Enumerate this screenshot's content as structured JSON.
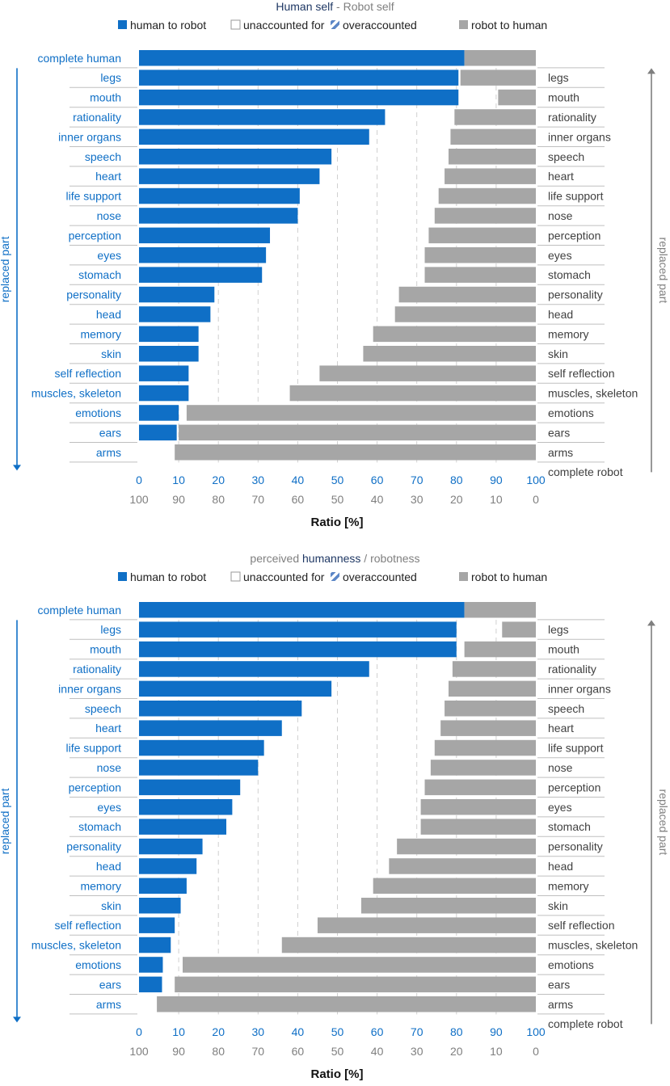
{
  "colors": {
    "human": "#0F6FC6",
    "robot": "#A6A6A6",
    "hatch_stripe": "#5B86C6",
    "left_label": "#0F6FC6",
    "right_label": "#404040",
    "robot_axis": "#7F7F7F",
    "arrow_left": "#0F6FC6",
    "arrow_right": "#7F7F7F",
    "title_dark": "#1F3864",
    "title_gray": "#7F7F7F"
  },
  "legend": {
    "human": "human to robot",
    "unaccounted": "unaccounted for",
    "over": "overaccounted",
    "robot": "robot to human"
  },
  "axis_labels": {
    "left": "replaced part",
    "right": "replaced part",
    "x": "Ratio [%]"
  },
  "chart_data": [
    {
      "type": "bar",
      "orientation": "horizontal",
      "title_parts": [
        {
          "text": "Human self",
          "style": "dark"
        },
        {
          "text": " - ",
          "style": "gray"
        },
        {
          "text": "Robot self",
          "style": "gray"
        }
      ],
      "xlabel": "Ratio [%]",
      "xlim": [
        0,
        100
      ],
      "xticks_human": [
        "0",
        "10",
        "20",
        "30",
        "40",
        "50",
        "60",
        "70",
        "80",
        "90",
        "100"
      ],
      "xticks_robot": [
        "100",
        "90",
        "80",
        "70",
        "60",
        "50",
        "40",
        "30",
        "20",
        "10",
        "0"
      ],
      "left_labels": [
        "complete human",
        "legs",
        "mouth",
        "rationality",
        "inner organs",
        "speech",
        "heart",
        "life support",
        "nose",
        "perception",
        "eyes",
        "stomach",
        "personality",
        "head",
        "memory",
        "skin",
        "self reflection",
        "muscles, skeleton",
        "emotions",
        "ears",
        "arms"
      ],
      "right_labels": [
        "legs",
        "mouth",
        "rationality",
        "inner organs",
        "speech",
        "heart",
        "life support",
        "nose",
        "perception",
        "eyes",
        "stomach",
        "personality",
        "head",
        "memory",
        "skin",
        "self reflection",
        "muscles, skeleton",
        "emotions",
        "ears",
        "arms",
        "complete robot"
      ],
      "bars": [
        {
          "human": 82,
          "robot": 18
        },
        {
          "human": 80.5,
          "robot": 19
        },
        {
          "human": 80.5,
          "robot": 9.5
        },
        {
          "human": 62,
          "robot": 20.5
        },
        {
          "human": 58,
          "robot": 21.5
        },
        {
          "human": 48.5,
          "robot": 22
        },
        {
          "human": 45.5,
          "robot": 23
        },
        {
          "human": 40.5,
          "robot": 24.5
        },
        {
          "human": 40,
          "robot": 25.5
        },
        {
          "human": 33,
          "robot": 27
        },
        {
          "human": 32,
          "robot": 28
        },
        {
          "human": 31,
          "robot": 28
        },
        {
          "human": 19,
          "robot": 34.5
        },
        {
          "human": 18,
          "robot": 35.5
        },
        {
          "human": 15,
          "robot": 41
        },
        {
          "human": 15,
          "robot": 43.5
        },
        {
          "human": 12.5,
          "robot": 54.5
        },
        {
          "human": 12.5,
          "robot": 62
        },
        {
          "human": 10,
          "robot": 88
        },
        {
          "human": 9.5,
          "robot": 90
        },
        {
          "human": 0,
          "robot": 91
        }
      ]
    },
    {
      "type": "bar",
      "orientation": "horizontal",
      "title_parts": [
        {
          "text": "perceived ",
          "style": "gray"
        },
        {
          "text": "humanness",
          "style": "dark"
        },
        {
          "text": " / ",
          "style": "gray"
        },
        {
          "text": "robotness",
          "style": "gray"
        }
      ],
      "xlabel": "Ratio [%]",
      "xlim": [
        0,
        100
      ],
      "xticks_human": [
        "0",
        "10",
        "20",
        "30",
        "40",
        "50",
        "60",
        "70",
        "80",
        "90",
        "100"
      ],
      "xticks_robot": [
        "100",
        "90",
        "80",
        "70",
        "60",
        "50",
        "40",
        "30",
        "20",
        "10",
        "0"
      ],
      "left_labels": [
        "complete human",
        "legs",
        "mouth",
        "rationality",
        "inner organs",
        "speech",
        "heart",
        "life support",
        "nose",
        "perception",
        "eyes",
        "stomach",
        "personality",
        "head",
        "memory",
        "skin",
        "self reflection",
        "muscles, skeleton",
        "emotions",
        "ears",
        "arms"
      ],
      "right_labels": [
        "legs",
        "mouth",
        "rationality",
        "inner organs",
        "speech",
        "heart",
        "life support",
        "nose",
        "perception",
        "eyes",
        "stomach",
        "personality",
        "head",
        "memory",
        "skin",
        "self reflection",
        "muscles, skeleton",
        "emotions",
        "ears",
        "arms",
        "complete robot"
      ],
      "bars": [
        {
          "human": 82,
          "robot": 18
        },
        {
          "human": 80,
          "robot": 8.5
        },
        {
          "human": 80,
          "robot": 18
        },
        {
          "human": 58,
          "robot": 21
        },
        {
          "human": 48.5,
          "robot": 22
        },
        {
          "human": 41,
          "robot": 23
        },
        {
          "human": 36,
          "robot": 24
        },
        {
          "human": 31.5,
          "robot": 25.5
        },
        {
          "human": 30,
          "robot": 26.5
        },
        {
          "human": 25.5,
          "robot": 28
        },
        {
          "human": 23.5,
          "robot": 29
        },
        {
          "human": 22,
          "robot": 29
        },
        {
          "human": 16,
          "robot": 35
        },
        {
          "human": 14.5,
          "robot": 37
        },
        {
          "human": 12,
          "robot": 41
        },
        {
          "human": 10.5,
          "robot": 44
        },
        {
          "human": 9,
          "robot": 55
        },
        {
          "human": 8,
          "robot": 64
        },
        {
          "human": 6,
          "robot": 89
        },
        {
          "human": 5.8,
          "robot": 91
        },
        {
          "human": 0,
          "robot": 95.5
        }
      ]
    }
  ]
}
